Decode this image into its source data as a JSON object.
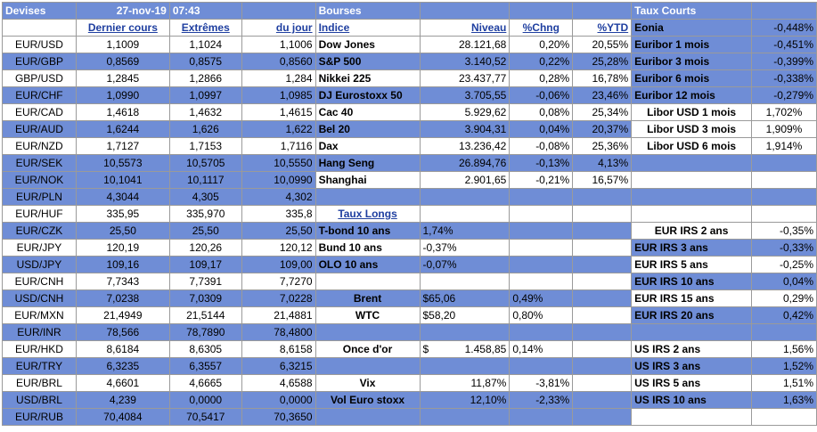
{
  "header": {
    "devises": "Devises",
    "date": "27-nov-19",
    "time": "07:43",
    "bourses": "Bourses",
    "taux_courts": "Taux Courts",
    "eonia_label": "Eonia",
    "eonia_value": "-0,448%"
  },
  "subheader": {
    "dernier": "Dernier cours",
    "extremes": "Extrêmes",
    "du_jour": "du jour",
    "indice": "Indice",
    "niveau": "Niveau",
    "chng": "%Chng",
    "ytd": "%YTD"
  },
  "fx": [
    {
      "pair": "EUR/USD",
      "last": "1,1009",
      "high": "1,1024",
      "low": "1,1006"
    },
    {
      "pair": "EUR/GBP",
      "last": "0,8569",
      "high": "0,8575",
      "low": "0,8560"
    },
    {
      "pair": "GBP/USD",
      "last": "1,2845",
      "high": "1,2866",
      "low": "1,284"
    },
    {
      "pair": "EUR/CHF",
      "last": "1,0990",
      "high": "1,0997",
      "low": "1,0985"
    },
    {
      "pair": "EUR/CAD",
      "last": "1,4618",
      "high": "1,4632",
      "low": "1,4615"
    },
    {
      "pair": "EUR/AUD",
      "last": "1,6244",
      "high": "1,626",
      "low": "1,622"
    },
    {
      "pair": "EUR/NZD",
      "last": "1,7127",
      "high": "1,7153",
      "low": "1,7116"
    },
    {
      "pair": "EUR/SEK",
      "last": "10,5573",
      "high": "10,5705",
      "low": "10,5550"
    },
    {
      "pair": "EUR/NOK",
      "last": "10,1041",
      "high": "10,1117",
      "low": "10,0990"
    },
    {
      "pair": "EUR/PLN",
      "last": "4,3044",
      "high": "4,305",
      "low": "4,302"
    },
    {
      "pair": "EUR/HUF",
      "last": "335,95",
      "high": "335,970",
      "low": "335,8"
    },
    {
      "pair": "EUR/CZK",
      "last": "25,50",
      "high": "25,50",
      "low": "25,50"
    },
    {
      "pair": "EUR/JPY",
      "last": "120,19",
      "high": "120,26",
      "low": "120,12"
    },
    {
      "pair": "USD/JPY",
      "last": "109,16",
      "high": "109,17",
      "low": "109,00"
    },
    {
      "pair": "EUR/CNH",
      "last": "7,7343",
      "high": "7,7391",
      "low": "7,7270"
    },
    {
      "pair": "USD/CNH",
      "last": "7,0238",
      "high": "7,0309",
      "low": "7,0228"
    },
    {
      "pair": "EUR/MXN",
      "last": "21,4949",
      "high": "21,5144",
      "low": "21,4881"
    },
    {
      "pair": "EUR/INR",
      "last": "78,566",
      "high": "78,7890",
      "low": "78,4800"
    },
    {
      "pair": "EUR/HKD",
      "last": "8,6184",
      "high": "8,6305",
      "low": "8,6158"
    },
    {
      "pair": "EUR/TRY",
      "last": "6,3235",
      "high": "6,3557",
      "low": "6,3215"
    },
    {
      "pair": "EUR/BRL",
      "last": "4,6601",
      "high": "4,6665",
      "low": "4,6588"
    },
    {
      "pair": "USD/BRL",
      "last": "4,239",
      "high": "0,0000",
      "low": "0,0000"
    },
    {
      "pair": "EUR/RUB",
      "last": "70,4084",
      "high": "70,5417",
      "low": "70,3650"
    }
  ],
  "indices": [
    {
      "name": "Dow Jones",
      "level": "28.121,68",
      "chng": "0,20%",
      "ytd": "20,55%"
    },
    {
      "name": "S&P 500",
      "level": "3.140,52",
      "chng": "0,22%",
      "ytd": "25,28%"
    },
    {
      "name": "Nikkei 225",
      "level": "23.437,77",
      "chng": "0,28%",
      "ytd": "16,78%"
    },
    {
      "name": "DJ Eurostoxx 50",
      "level": "3.705,55",
      "chng": "-0,06%",
      "ytd": "23,46%"
    },
    {
      "name": "Cac 40",
      "level": "5.929,62",
      "chng": "0,08%",
      "ytd": "25,34%"
    },
    {
      "name": "Bel 20",
      "level": "3.904,31",
      "chng": "0,04%",
      "ytd": "20,37%"
    },
    {
      "name": "Dax",
      "level": "13.236,42",
      "chng": "-0,08%",
      "ytd": "25,36%"
    },
    {
      "name": "Hang Seng",
      "level": "26.894,76",
      "chng": "-0,13%",
      "ytd": "4,13%"
    },
    {
      "name": "Shanghai",
      "level": "2.901,65",
      "chng": "-0,21%",
      "ytd": "16,57%"
    }
  ],
  "taux_longs": {
    "title": "Taux Longs",
    "items": [
      {
        "name": "T-bond 10 ans",
        "value": "1,74%"
      },
      {
        "name": "Bund 10 ans",
        "value": "-0,37%"
      },
      {
        "name": "OLO 10 ans",
        "value": "-0,07%"
      }
    ]
  },
  "commodities": [
    {
      "name": "Brent",
      "level": "$65,06",
      "chng": "0,49%"
    },
    {
      "name": "WTC",
      "level": "$58,20",
      "chng": "0,80%"
    },
    {
      "name": "Once d'or",
      "currency": "$",
      "level": "1.458,85",
      "chng": "0,14%"
    },
    {
      "name": "Vix",
      "level": "11,87%",
      "chng": "-3,81%"
    },
    {
      "name": "Vol Euro stoxx",
      "level": "12,10%",
      "chng": "-2,33%"
    }
  ],
  "short_rates": [
    {
      "name": "Euribor 1 mois",
      "value": "-0,451%"
    },
    {
      "name": "Euribor 3 mois",
      "value": "-0,399%"
    },
    {
      "name": "Euribor 6 mois",
      "value": "-0,338%"
    },
    {
      "name": "Euribor 12 mois",
      "value": "-0,279%"
    },
    {
      "name": "Libor USD 1 mois",
      "value": "1,702%"
    },
    {
      "name": "Libor USD 3 mois",
      "value": "1,909%"
    },
    {
      "name": "Libor USD 6 mois",
      "value": "1,914%"
    }
  ],
  "irs": [
    {
      "name": "EUR IRS 2 ans",
      "value": "-0,35%"
    },
    {
      "name": "EUR IRS 3 ans",
      "value": "-0,33%"
    },
    {
      "name": "EUR IRS 5 ans",
      "value": "-0,25%"
    },
    {
      "name": "EUR IRS 10 ans",
      "value": "0,04%"
    },
    {
      "name": "EUR IRS 15 ans",
      "value": "0,29%"
    },
    {
      "name": "EUR IRS 20 ans",
      "value": "0,42%"
    },
    {
      "name": "US IRS 2 ans",
      "value": "1,56%"
    },
    {
      "name": "US IRS 3 ans",
      "value": "1,52%"
    },
    {
      "name": "US IRS 5 ans",
      "value": "1,51%"
    },
    {
      "name": "US IRS 10 ans",
      "value": "1,63%"
    }
  ],
  "colors": {
    "header_blue": "#6f8dd6",
    "link_blue": "#1f3fa0",
    "grid": "#9a9a9a"
  }
}
